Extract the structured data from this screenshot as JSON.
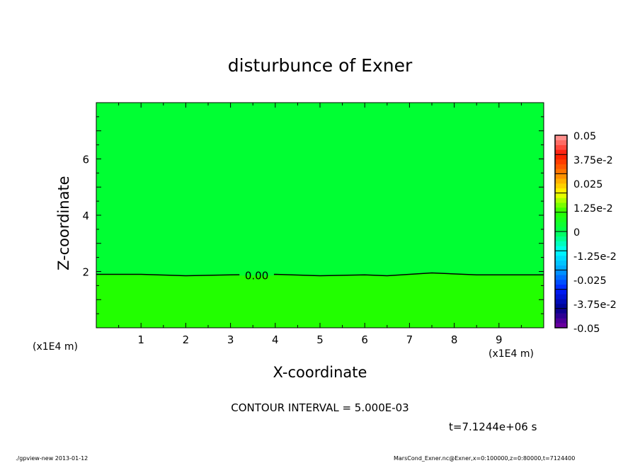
{
  "chart_data": {
    "type": "heatmap",
    "title": "disturbunce of Exner",
    "xlabel": "X-coordinate",
    "ylabel": "Z-coordinate",
    "x_unit": "(x1E4 m)",
    "x_unit_left": "(x1E4 m)",
    "xlim": [
      0,
      10
    ],
    "ylim": [
      0,
      8
    ],
    "xticks": [
      "1",
      "2",
      "3",
      "4",
      "5",
      "6",
      "7",
      "8",
      "9"
    ],
    "yticks": [
      "2",
      "4",
      "6"
    ],
    "regions": [
      {
        "range": "below contour",
        "color": "#22ff00",
        "value_band": [
          0,
          0.0025
        ]
      },
      {
        "range": "above contour",
        "color": "#00ff33",
        "value_band": [
          -0.0025,
          0
        ]
      }
    ],
    "contour": {
      "label": "0.00",
      "points": [
        [
          0,
          1.9
        ],
        [
          1,
          1.9
        ],
        [
          2,
          1.85
        ],
        [
          3,
          1.88
        ],
        [
          4,
          1.9
        ],
        [
          5,
          1.85
        ],
        [
          6,
          1.88
        ],
        [
          6.5,
          1.85
        ],
        [
          7.5,
          1.95
        ],
        [
          8.5,
          1.88
        ],
        [
          10,
          1.88
        ]
      ]
    },
    "colorbar": {
      "min": -0.05,
      "max": 0.05,
      "levels": 40,
      "tick_labels": [
        "0.05",
        "3.75e-2",
        "0.025",
        "1.25e-2",
        "0",
        "-1.25e-2",
        "-0.025",
        "-3.75e-2",
        "-0.05"
      ]
    },
    "contour_interval": "CONTOUR INTERVAL = 5.000E-03",
    "time_label": "t=7.1244e+06 s"
  },
  "footer": {
    "left": "./gpview-new  2013-01-12",
    "right": "MarsCond_Exner.nc@Exner,x=0:100000,z=0:80000,t=7124400"
  }
}
